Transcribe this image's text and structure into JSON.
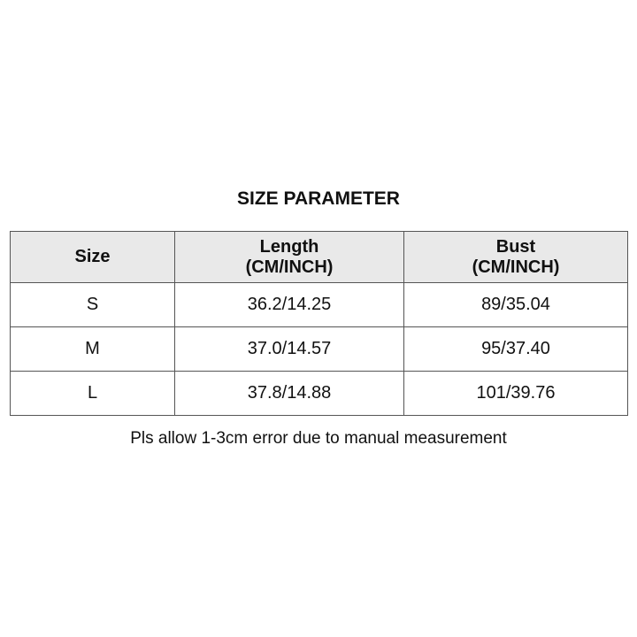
{
  "title": "SIZE PARAMETER",
  "table": {
    "headers": [
      {
        "line1": "Size",
        "line2": ""
      },
      {
        "line1": "Length",
        "line2": "(CM/INCH)"
      },
      {
        "line1": "Bust",
        "line2": "(CM/INCH)"
      }
    ],
    "rows": [
      [
        "S",
        "36.2/14.25",
        "89/35.04"
      ],
      [
        "M",
        "37.0/14.57",
        "95/37.40"
      ],
      [
        "L",
        "37.8/14.88",
        "101/39.76"
      ]
    ]
  },
  "note": "Pls allow 1-3cm error due to manual measurement"
}
